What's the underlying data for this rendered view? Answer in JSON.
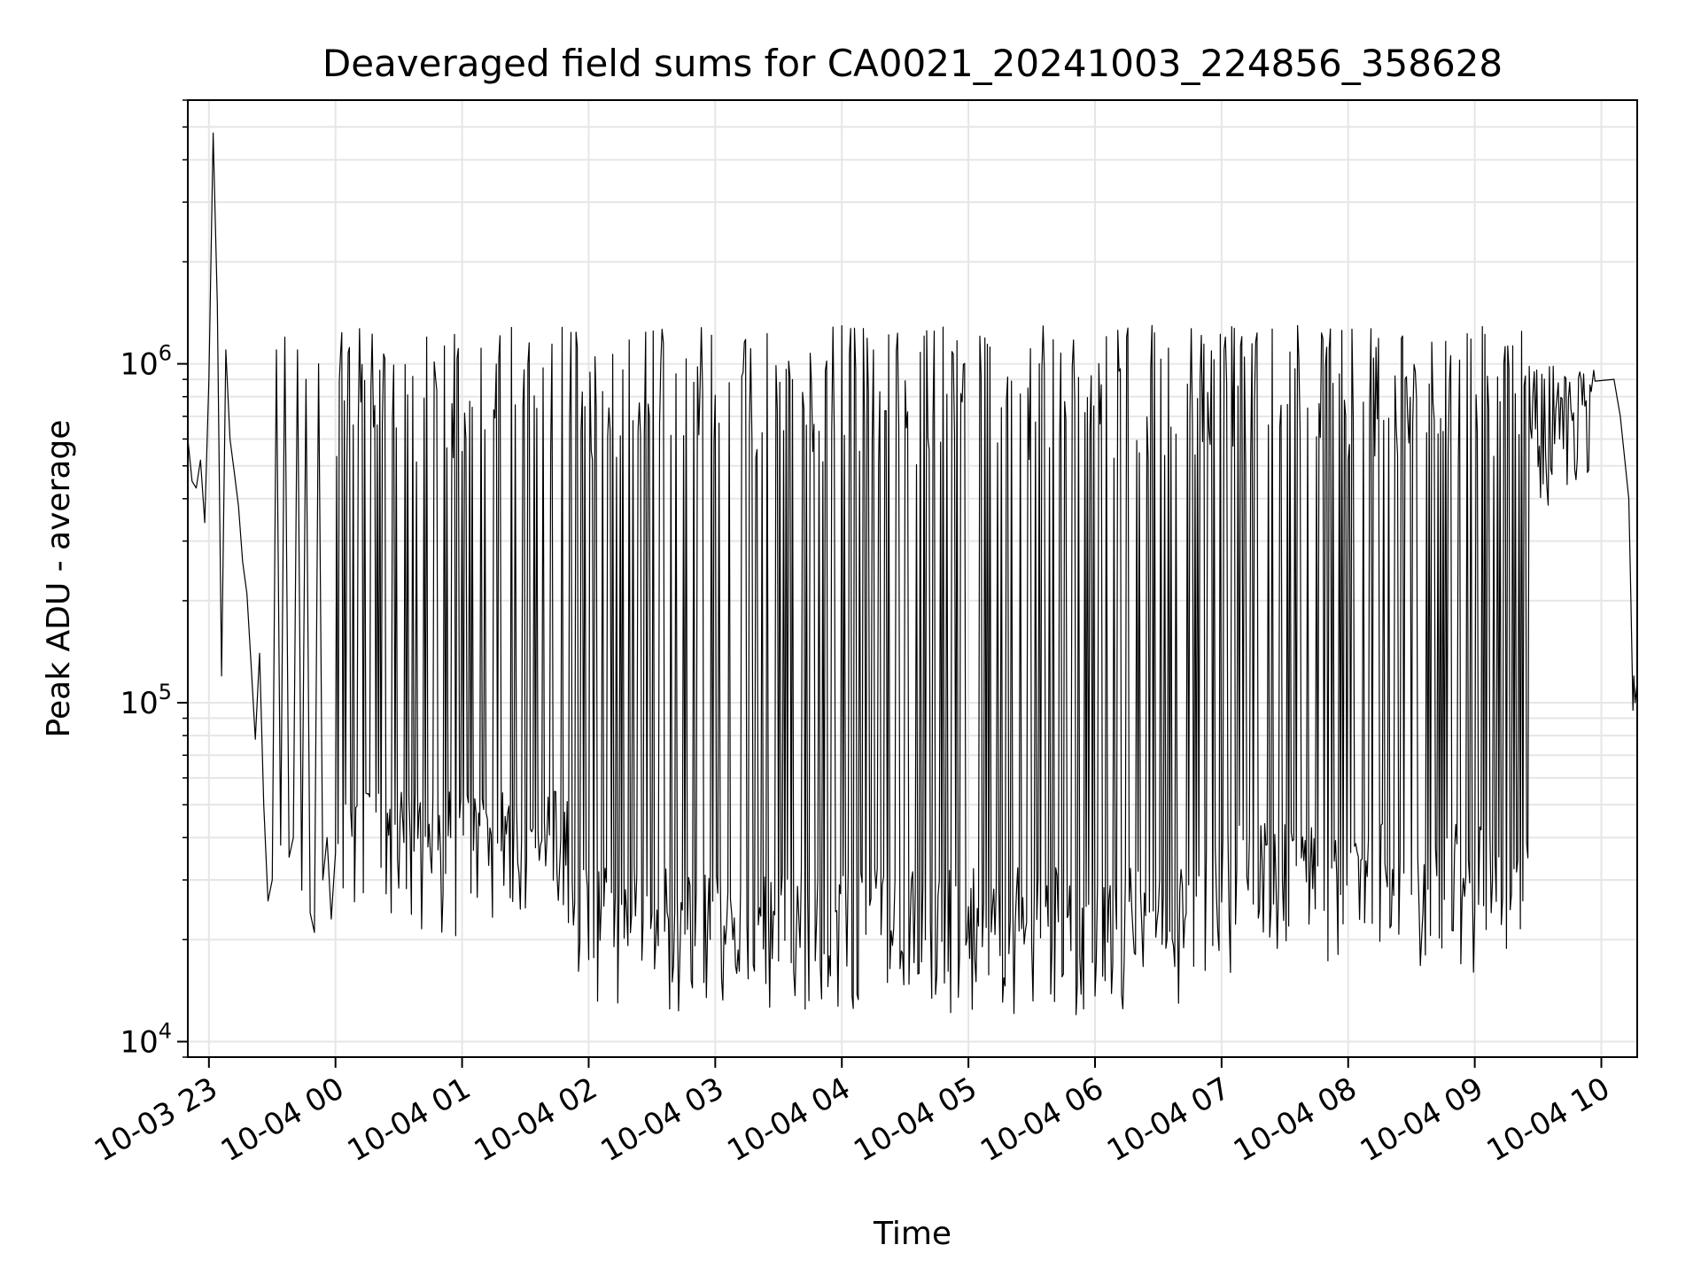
{
  "chart_data": {
    "type": "line",
    "title": "Deaveraged field sums for CA0021_20241003_224856_358628",
    "xlabel": "Time",
    "ylabel": "Peak ADU - average",
    "yscale": "log",
    "ylim": [
      9000,
      6000000
    ],
    "xlim": [
      "2024-10-03 22:50",
      "2024-10-04 10:17"
    ],
    "grid": true,
    "line_color": "#000000",
    "x_ticks": [
      "10-03 23",
      "10-04 00",
      "10-04 01",
      "10-04 02",
      "10-04 03",
      "10-04 04",
      "10-04 05",
      "10-04 06",
      "10-04 07",
      "10-04 08",
      "10-04 09",
      "10-04 10"
    ],
    "y_ticks": [
      {
        "base": "10",
        "exp": "4",
        "value": 10000
      },
      {
        "base": "10",
        "exp": "5",
        "value": 100000
      },
      {
        "base": "10",
        "exp": "6",
        "value": 1000000
      }
    ],
    "series": [
      {
        "x": [
          "2024-10-03 22:50",
          "2024-10-03 22:52",
          "2024-10-03 22:54",
          "2024-10-03 22:56",
          "2024-10-03 22:58",
          "2024-10-03 23:00",
          "2024-10-03 23:02",
          "2024-10-03 23:04",
          "2024-10-03 23:06",
          "2024-10-03 23:08",
          "2024-10-03 23:10",
          "2024-10-03 23:12",
          "2024-10-03 23:14",
          "2024-10-03 23:16",
          "2024-10-03 23:18",
          "2024-10-03 23:20",
          "2024-10-03 23:22",
          "2024-10-03 23:24",
          "2024-10-03 23:26",
          "2024-10-03 23:28",
          "2024-10-03 23:30",
          "2024-10-03 23:32",
          "2024-10-03 23:34",
          "2024-10-03 23:36",
          "2024-10-03 23:38",
          "2024-10-03 23:40",
          "2024-10-03 23:42",
          "2024-10-03 23:44",
          "2024-10-03 23:46",
          "2024-10-03 23:48",
          "2024-10-03 23:50",
          "2024-10-03 23:52",
          "2024-10-03 23:54",
          "2024-10-03 23:56",
          "2024-10-03 23:58"
        ],
        "y": [
          600000,
          450000,
          430000,
          520000,
          340000,
          900000,
          4800000,
          1500000,
          120000,
          1100000,
          600000,
          480000,
          380000,
          260000,
          210000,
          130000,
          78000,
          140000,
          50000,
          26000,
          30000,
          1100000,
          38000,
          1200000,
          35000,
          40000,
          1100000,
          28000,
          900000,
          24000,
          21000,
          1000000,
          30000,
          40000,
          23000
        ]
      }
    ]
  }
}
